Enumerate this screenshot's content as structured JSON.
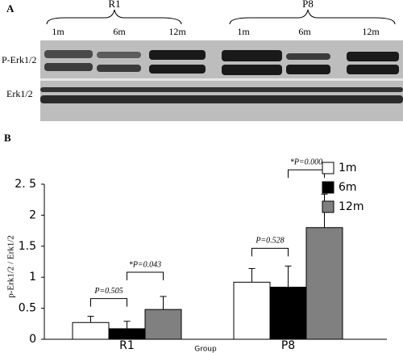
{
  "panel_a": {
    "label": "A",
    "groups": [
      "R1",
      "P8"
    ],
    "lanes": [
      "1m",
      "6m",
      "12m",
      "1m",
      "6m",
      "12m"
    ],
    "rows": [
      "P-Erk1/2",
      "Erk1/2"
    ]
  },
  "panel_b": {
    "label": "B"
  },
  "chart_data": {
    "type": "bar",
    "categories": [
      "R1",
      "P8"
    ],
    "series": [
      {
        "name": "1m",
        "color": "#ffffff",
        "values": [
          0.27,
          0.92
        ],
        "errors": [
          0.1,
          0.22
        ]
      },
      {
        "name": "6m",
        "color": "#000000",
        "values": [
          0.17,
          0.84
        ],
        "errors": [
          0.12,
          0.34
        ]
      },
      {
        "name": "12m",
        "color": "#808080",
        "values": [
          0.48,
          1.8
        ],
        "errors": [
          0.21,
          0.54
        ]
      }
    ],
    "ylim": [
      0,
      2.5
    ],
    "yticks": [
      0,
      0.5,
      1,
      1.5,
      2,
      {
        "value": 2.5,
        "label": "2. 5"
      }
    ],
    "ylabel": "p-Erk1/2 / Erk1/2",
    "xlabel": "Group",
    "legend": "right",
    "annotations": [
      "P=0.505",
      "*P=0.043",
      "P=0.528",
      "*P=0.000"
    ]
  }
}
